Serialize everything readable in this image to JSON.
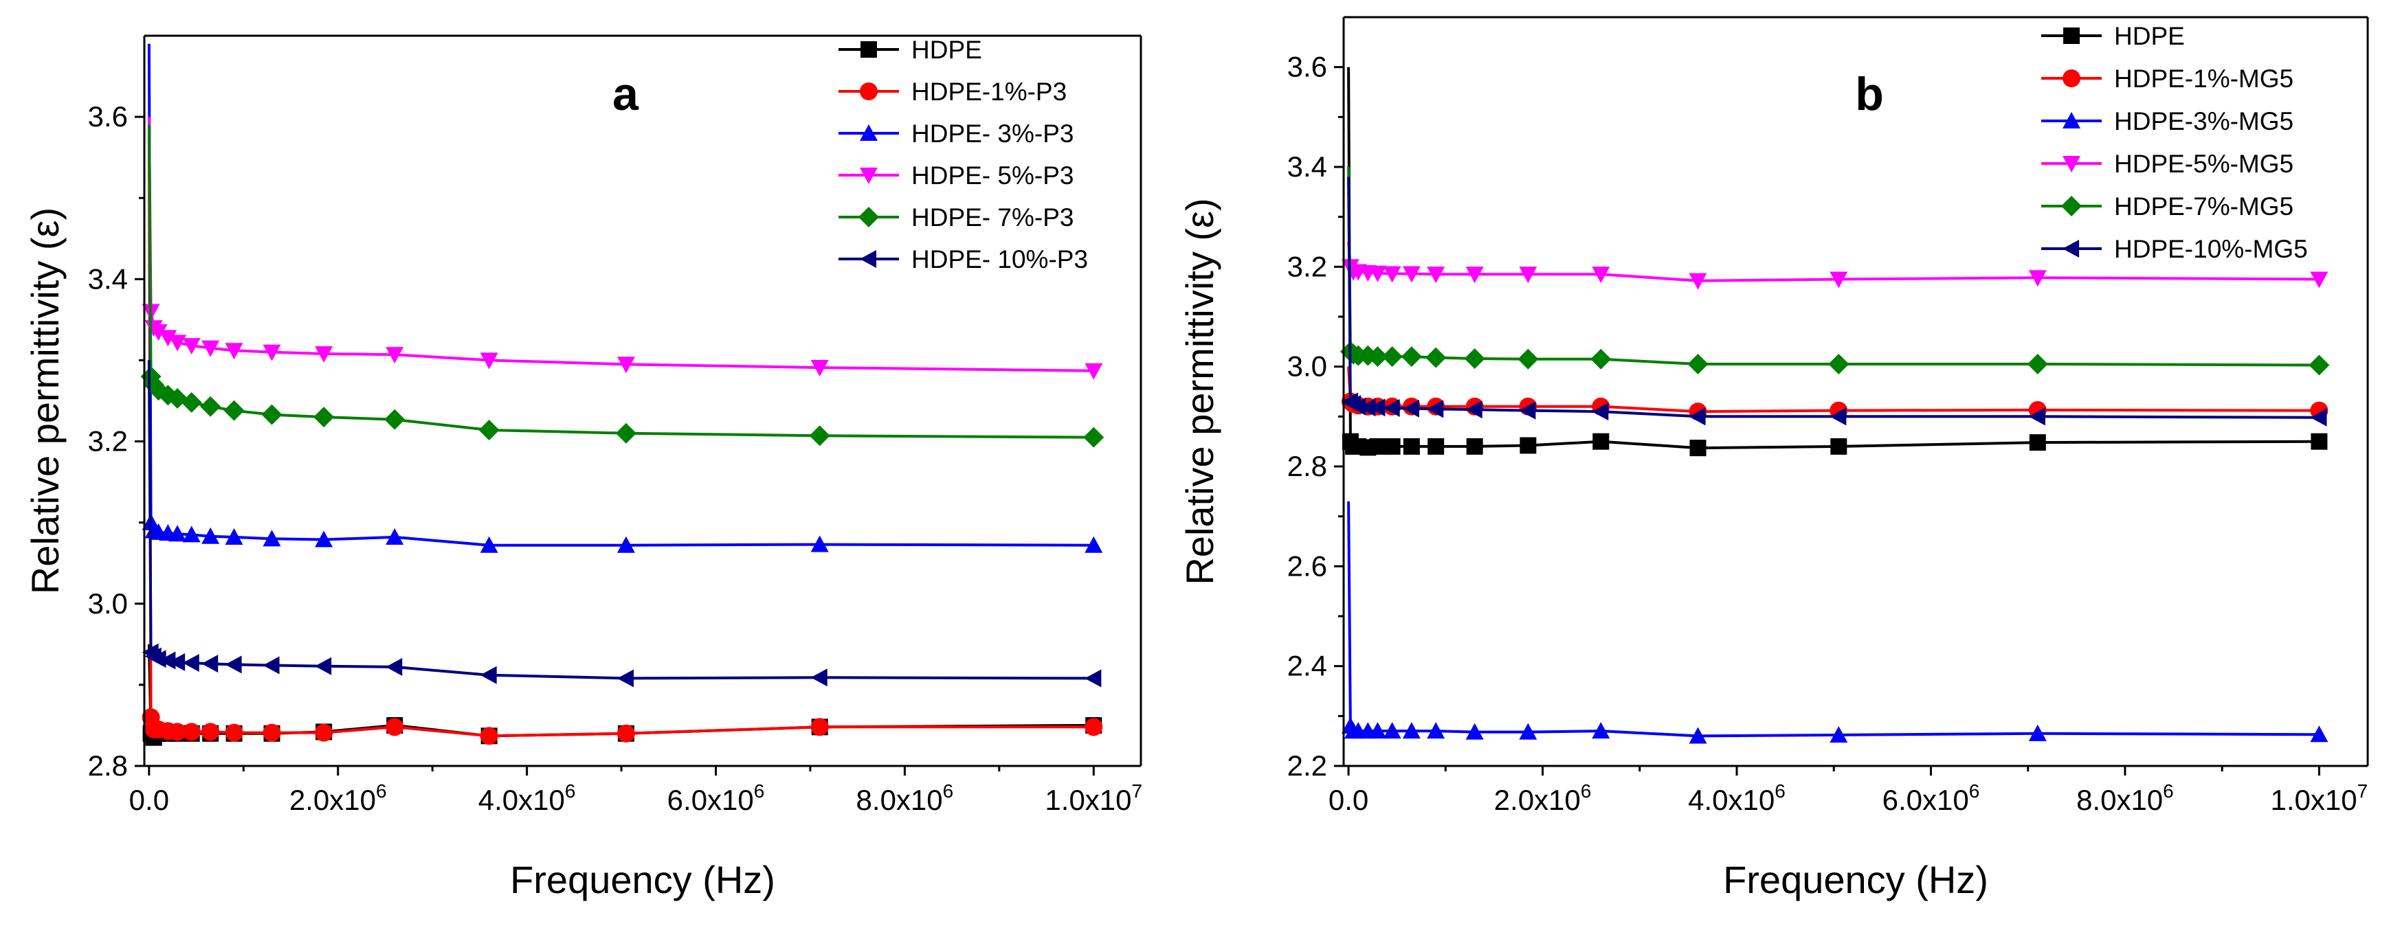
{
  "chart_data": [
    {
      "type": "line",
      "panel_label": "a",
      "xlabel": "Frequency (Hz)",
      "ylabel": "Relative permittivity (ε)",
      "xlim": [
        -50000,
        10500000
      ],
      "ylim": [
        2.8,
        3.7
      ],
      "xticks": [
        0,
        2000000,
        4000000,
        6000000,
        8000000,
        10000000
      ],
      "xtick_labels": [
        {
          "mant": "0.0",
          "exp": ""
        },
        {
          "mant": "2.0x10",
          "exp": "6"
        },
        {
          "mant": "4.0x10",
          "exp": "6"
        },
        {
          "mant": "6.0x10",
          "exp": "6"
        },
        {
          "mant": "8.0x10",
          "exp": "6"
        },
        {
          "mant": "1.0x10",
          "exp": "7"
        }
      ],
      "yticks": [
        2.8,
        3.0,
        3.2,
        3.4,
        3.6
      ],
      "ytick_labels": [
        "2.8",
        "3.0",
        "3.2",
        "3.4",
        "3.6"
      ],
      "x": [
        0,
        20000,
        50000,
        100000,
        200000,
        300000,
        450000,
        650000,
        900000,
        1300000,
        1850000,
        2600000,
        3600000,
        5050000,
        7100000,
        10000000
      ],
      "series": [
        {
          "name": "HDPE",
          "color": "#000000",
          "marker": "square",
          "values": [
            2.95,
            2.84,
            2.835,
            2.84,
            2.84,
            2.84,
            2.84,
            2.84,
            2.84,
            2.84,
            2.842,
            2.85,
            2.837,
            2.84,
            2.848,
            2.85
          ]
        },
        {
          "name": "HDPE-1%-P3",
          "color": "#ff0000",
          "marker": "circle",
          "values": [
            3.58,
            2.86,
            2.845,
            2.845,
            2.843,
            2.842,
            2.842,
            2.842,
            2.841,
            2.841,
            2.841,
            2.848,
            2.837,
            2.84,
            2.848,
            2.848
          ]
        },
        {
          "name": "HDPE- 3%-P3",
          "color": "#0000ff",
          "marker": "triangle-up",
          "values": [
            3.69,
            3.1,
            3.09,
            3.088,
            3.087,
            3.086,
            3.085,
            3.083,
            3.082,
            3.08,
            3.079,
            3.082,
            3.072,
            3.072,
            3.073,
            3.072
          ]
        },
        {
          "name": "HDPE- 5%-P3",
          "color": "#ff00ff",
          "marker": "triangle-down",
          "values": [
            3.6,
            3.36,
            3.34,
            3.335,
            3.328,
            3.322,
            3.318,
            3.315,
            3.312,
            3.31,
            3.308,
            3.307,
            3.3,
            3.295,
            3.291,
            3.287
          ]
        },
        {
          "name": "HDPE- 7%-P3",
          "color": "#008000",
          "marker": "diamond",
          "values": [
            3.59,
            3.28,
            3.27,
            3.263,
            3.257,
            3.253,
            3.248,
            3.243,
            3.238,
            3.233,
            3.23,
            3.227,
            3.214,
            3.21,
            3.207,
            3.205
          ]
        },
        {
          "name": "HDPE- 10%-P3",
          "color": "#00007f",
          "marker": "triangle-left",
          "values": [
            3.3,
            2.94,
            2.935,
            2.932,
            2.93,
            2.928,
            2.927,
            2.926,
            2.925,
            2.924,
            2.923,
            2.922,
            2.912,
            2.908,
            2.909,
            2.908
          ]
        }
      ]
    },
    {
      "type": "line",
      "panel_label": "b",
      "xlabel": "Frequency (Hz)",
      "ylabel": "Relative permittivity (ε)",
      "xlim": [
        -50000,
        10500000
      ],
      "ylim": [
        2.2,
        3.7
      ],
      "xticks": [
        0,
        2000000,
        4000000,
        6000000,
        8000000,
        10000000
      ],
      "xtick_labels": [
        {
          "mant": "0.0",
          "exp": ""
        },
        {
          "mant": "2.0x10",
          "exp": "6"
        },
        {
          "mant": "4.0x10",
          "exp": "6"
        },
        {
          "mant": "6.0x10",
          "exp": "6"
        },
        {
          "mant": "8.0x10",
          "exp": "6"
        },
        {
          "mant": "1.0x10",
          "exp": "7"
        }
      ],
      "yticks": [
        2.2,
        2.4,
        2.6,
        2.8,
        3.0,
        3.2,
        3.4,
        3.6
      ],
      "ytick_labels": [
        "2.2",
        "2.4",
        "2.6",
        "2.8",
        "3.0",
        "3.2",
        "3.4",
        "3.6"
      ],
      "x": [
        0,
        20000,
        50000,
        100000,
        200000,
        300000,
        450000,
        650000,
        900000,
        1300000,
        1850000,
        2600000,
        3600000,
        5050000,
        7100000,
        10000000
      ],
      "series": [
        {
          "name": "HDPE",
          "color": "#000000",
          "marker": "square",
          "values": [
            3.6,
            2.85,
            2.84,
            2.84,
            2.838,
            2.84,
            2.84,
            2.84,
            2.84,
            2.84,
            2.842,
            2.85,
            2.837,
            2.84,
            2.848,
            2.85
          ]
        },
        {
          "name": "HDPE-1%-MG5",
          "color": "#ff0000",
          "marker": "circle",
          "values": [
            3.0,
            2.93,
            2.925,
            2.922,
            2.92,
            2.92,
            2.92,
            2.92,
            2.92,
            2.92,
            2.92,
            2.92,
            2.91,
            2.912,
            2.913,
            2.912
          ]
        },
        {
          "name": "HDPE-3%-MG5",
          "color": "#0000ff",
          "marker": "triangle-up",
          "values": [
            2.73,
            2.28,
            2.27,
            2.27,
            2.27,
            2.27,
            2.27,
            2.27,
            2.27,
            2.268,
            2.268,
            2.27,
            2.26,
            2.262,
            2.265,
            2.263
          ]
        },
        {
          "name": "HDPE-5%-MG5",
          "color": "#ff00ff",
          "marker": "triangle-down",
          "values": [
            3.25,
            3.2,
            3.19,
            3.19,
            3.188,
            3.187,
            3.186,
            3.186,
            3.185,
            3.185,
            3.185,
            3.185,
            3.172,
            3.175,
            3.178,
            3.175
          ]
        },
        {
          "name": "HDPE-7%-MG5",
          "color": "#008000",
          "marker": "diamond",
          "values": [
            3.4,
            3.03,
            3.025,
            3.022,
            3.022,
            3.02,
            3.02,
            3.02,
            3.018,
            3.016,
            3.015,
            3.015,
            3.005,
            3.005,
            3.005,
            3.003
          ]
        },
        {
          "name": "HDPE-10%-MG5",
          "color": "#00007f",
          "marker": "triangle-left",
          "values": [
            3.38,
            2.93,
            2.925,
            2.92,
            2.918,
            2.918,
            2.917,
            2.916,
            2.915,
            2.914,
            2.912,
            2.91,
            2.9,
            2.9,
            2.9,
            2.898
          ]
        }
      ]
    }
  ]
}
